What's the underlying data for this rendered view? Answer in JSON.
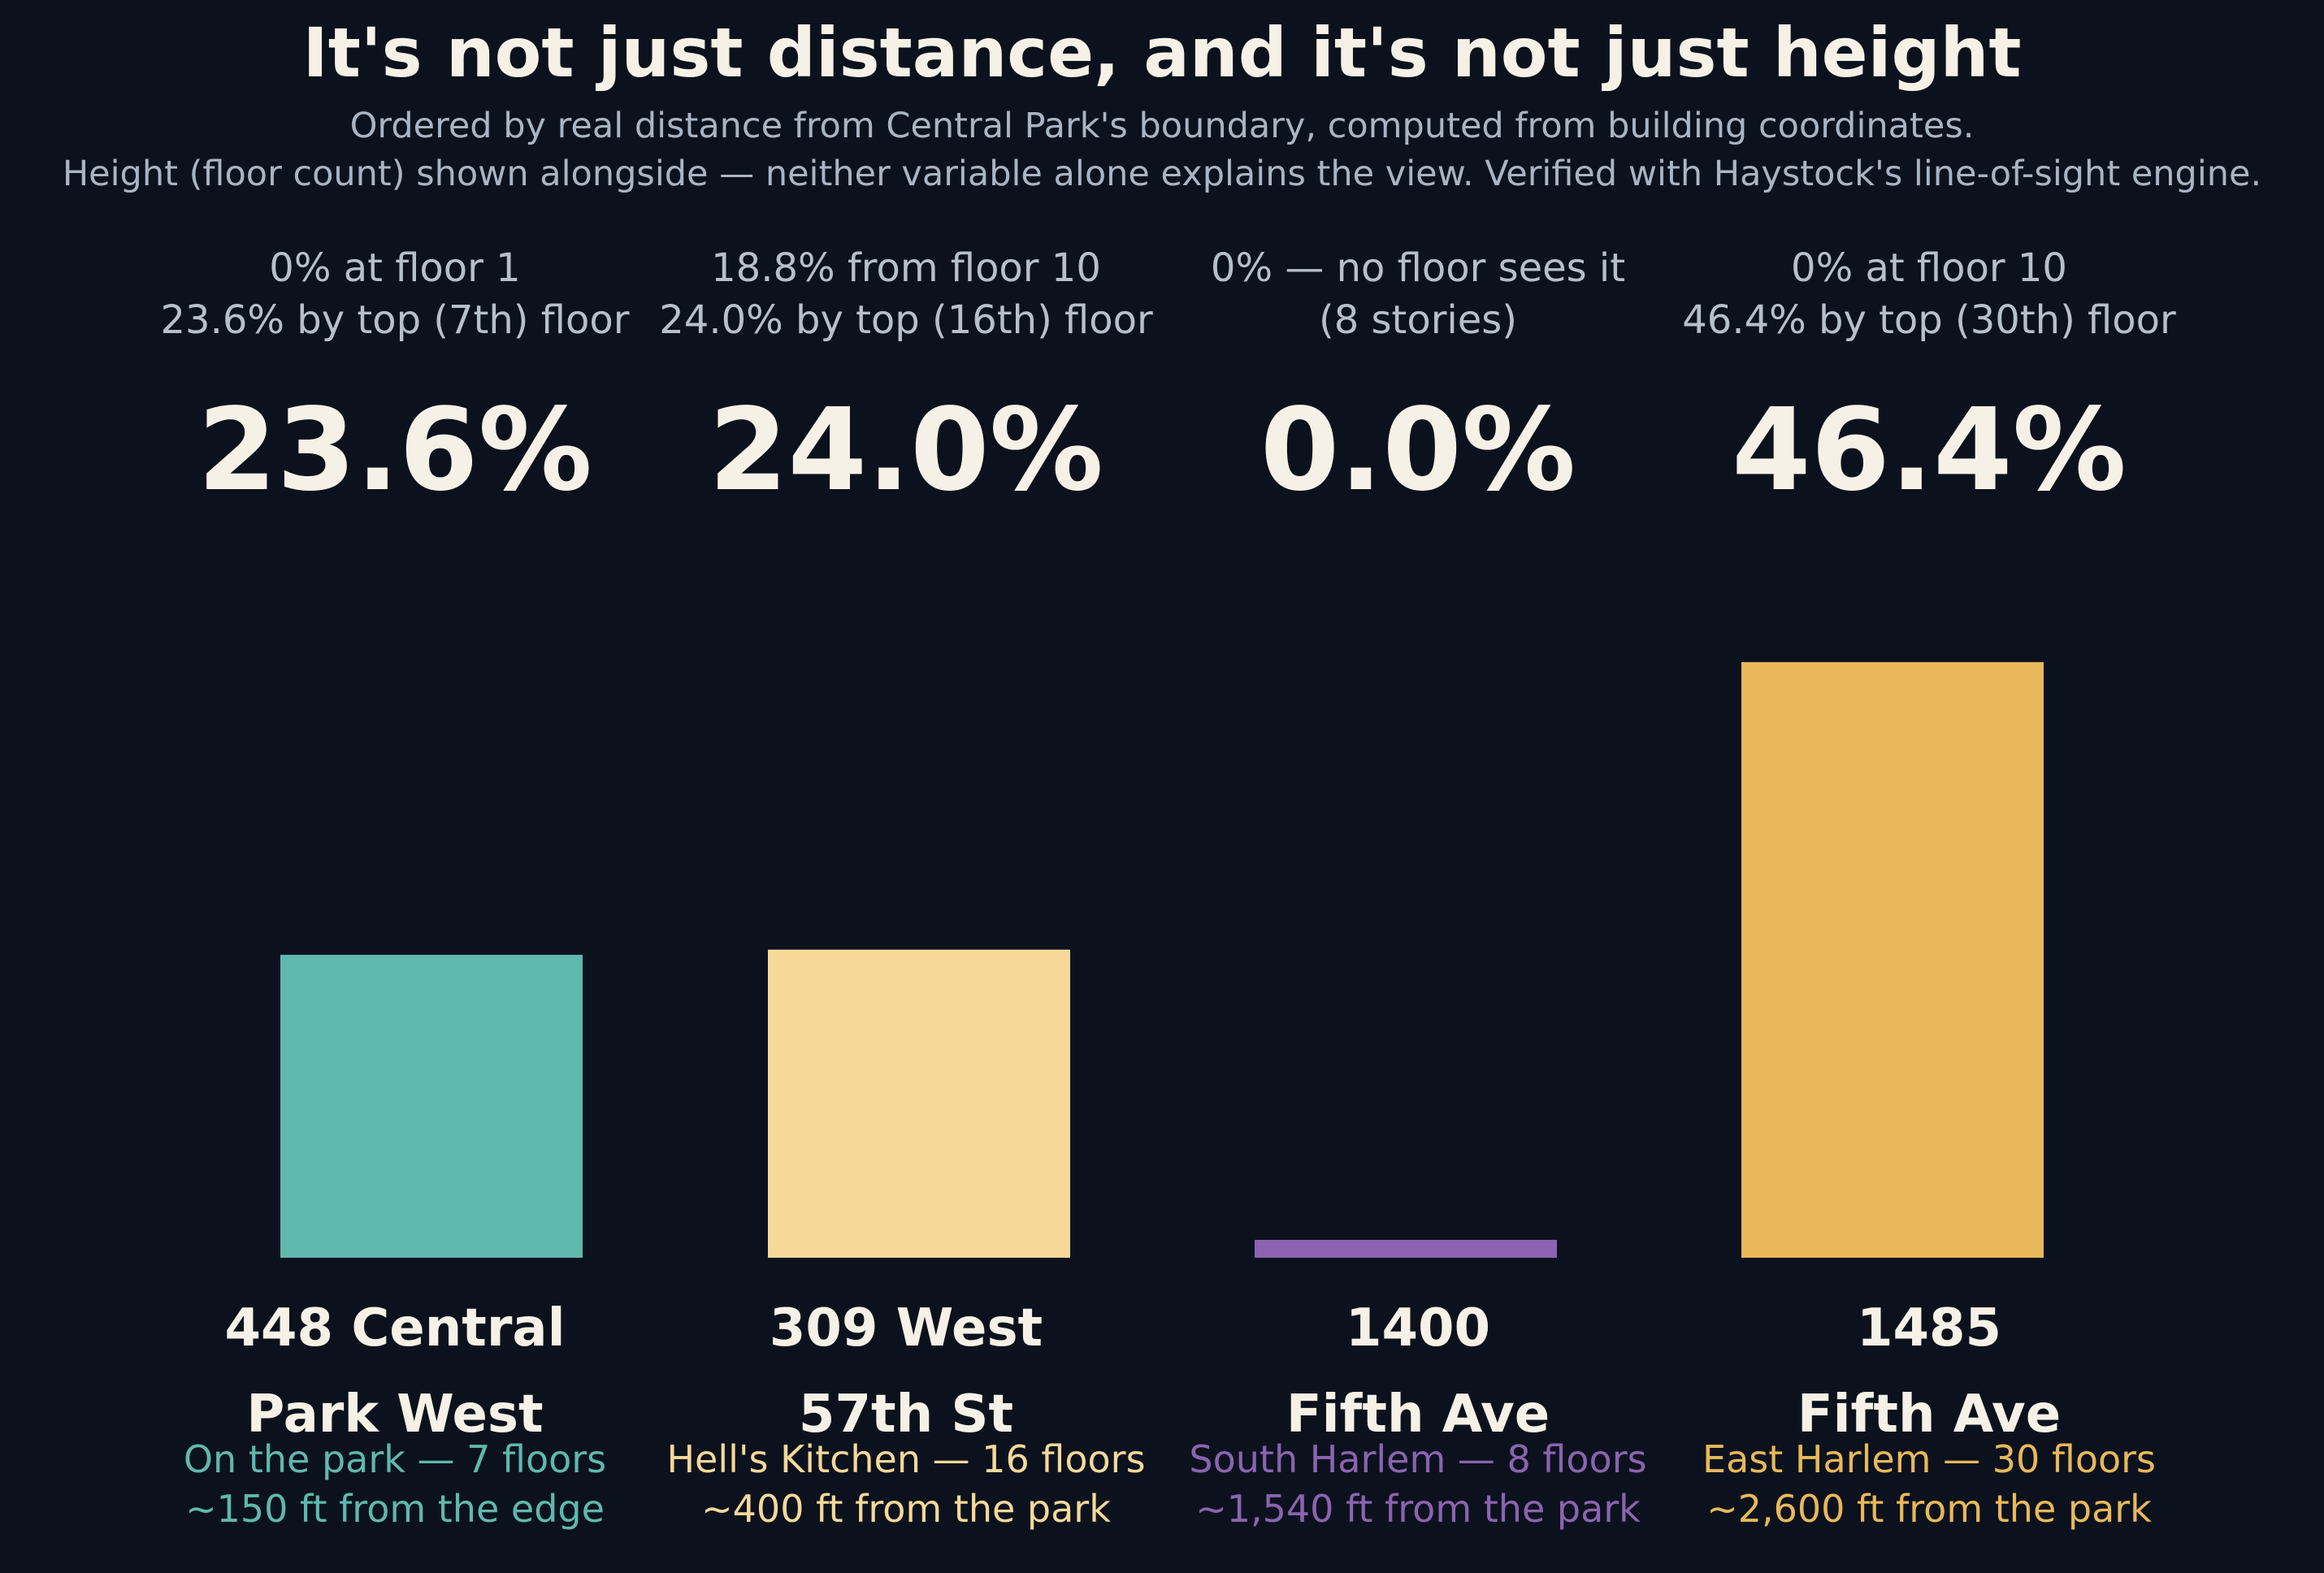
{
  "chart_data": {
    "type": "bar",
    "title": "It's not just distance, and it's not just height",
    "subtitle_lines": [
      "Ordered by real distance from Central Park's boundary, computed from building coordinates.",
      "Height (floor count) shown alongside — neither variable alone explains the view. Verified with Haystock's line-of-sight engine."
    ],
    "ylim": [
      0,
      50
    ],
    "grid": false,
    "buildings": [
      {
        "name_lines": [
          "448 Central",
          "Park West"
        ],
        "value": 23.6,
        "value_label": "23.6%",
        "note_lines": [
          "0% at floor 1",
          "23.6% by top (7th) floor"
        ],
        "desc_lines": [
          "On the park — 7 floors",
          "~150 ft from the edge"
        ],
        "color": "#5fb8ae"
      },
      {
        "name_lines": [
          "309 West",
          "57th St"
        ],
        "value": 24.0,
        "value_label": "24.0%",
        "note_lines": [
          "18.8% from floor 10",
          "24.0% by top (16th) floor"
        ],
        "desc_lines": [
          "Hell's Kitchen — 16 floors",
          "~400 ft from the park"
        ],
        "color": "#f6d899"
      },
      {
        "name_lines": [
          "1400",
          "Fifth Ave"
        ],
        "value": 0.0,
        "value_label": "0.0%",
        "note_lines": [
          "0% — no floor sees it",
          "(8 stories)"
        ],
        "desc_lines": [
          "South Harlem — 8 floors",
          "~1,540 ft from the park"
        ],
        "color": "#8b63b0"
      },
      {
        "name_lines": [
          "1485",
          "Fifth Ave"
        ],
        "value": 46.4,
        "value_label": "46.4%",
        "note_lines": [
          "0% at floor 10",
          "46.4% by top (30th) floor"
        ],
        "desc_lines": [
          "East Harlem — 30 floors",
          "~2,600 ft from the park"
        ],
        "color": "#e8b85a"
      }
    ]
  }
}
